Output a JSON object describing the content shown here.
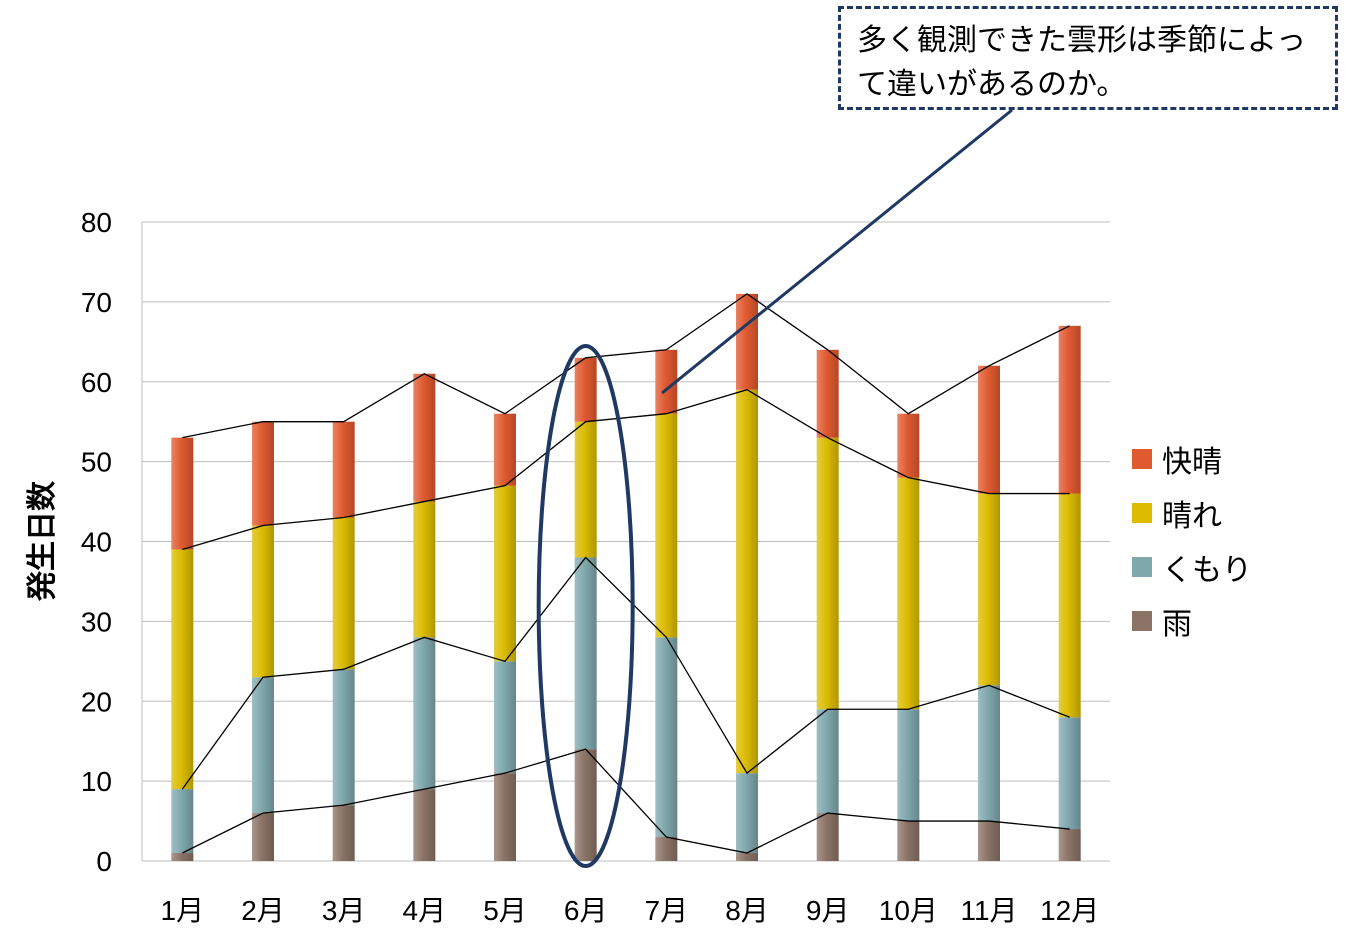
{
  "chart_data": {
    "type": "bar",
    "stacked": true,
    "title": "",
    "xlabel": "",
    "ylabel": "発生日数",
    "ylim": [
      0,
      80
    ],
    "yticks": [
      0,
      10,
      20,
      30,
      40,
      50,
      60,
      70,
      80
    ],
    "grid": true,
    "legend_position": "right",
    "categories": [
      "1月",
      "2月",
      "3月",
      "4月",
      "5月",
      "6月",
      "7月",
      "8月",
      "9月",
      "10月",
      "11月",
      "12月"
    ],
    "series": [
      {
        "name": "雨",
        "color": "#8b7366",
        "values": [
          1,
          6,
          7,
          9,
          11,
          14,
          3,
          1,
          6,
          5,
          5,
          4
        ]
      },
      {
        "name": "くもり",
        "color": "#7fa8ad",
        "values": [
          8,
          17,
          17,
          19,
          14,
          24,
          25,
          10,
          13,
          14,
          17,
          14
        ]
      },
      {
        "name": "晴れ",
        "color": "#dbbc00",
        "values": [
          30,
          19,
          19,
          17,
          22,
          17,
          28,
          48,
          34,
          29,
          24,
          28
        ]
      },
      {
        "name": "快晴",
        "color": "#e05a30",
        "values": [
          14,
          13,
          12,
          16,
          9,
          8,
          8,
          12,
          11,
          8,
          16,
          21
        ]
      }
    ],
    "annotation": {
      "text": "多く観測できた雲形は季節によって違いがあるのか。",
      "highlight_category": "6月"
    }
  }
}
